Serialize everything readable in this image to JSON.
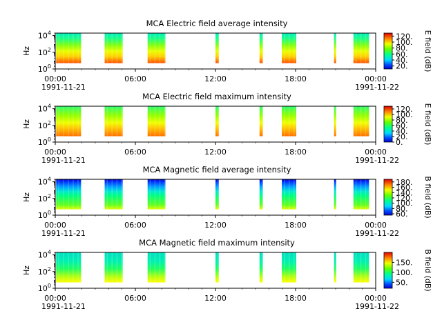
{
  "chart_data": [
    {
      "type": "heatmap",
      "title": "MCA  Electric field average intensity",
      "ylabel": "Hz",
      "yticks": [
        "10^0",
        "10^2",
        "10^4"
      ],
      "y_scale": "log",
      "ylim": [
        1,
        20000
      ],
      "xlim": [
        "1991-11-21 00:00",
        "1991-11-22 00:00"
      ],
      "xticks": [
        "00:00",
        "06:00",
        "12:00",
        "18:00",
        "00:00"
      ],
      "date_labels": [
        "1991-11-21",
        "1991-11-22"
      ],
      "colorbar": {
        "label": "E field (dB)",
        "ticks": [
          "120.",
          "100.",
          "80.",
          "60.",
          "40.",
          "20."
        ],
        "range": [
          10,
          130
        ]
      },
      "passes": [
        {
          "start": "1991-11-21 00:04",
          "end": "1991-11-21 01:56",
          "level": 70
        },
        {
          "start": "1991-11-21 03:42",
          "end": "1991-11-21 05:03",
          "level": 78
        },
        {
          "start": "1991-11-21 06:55",
          "end": "1991-11-21 08:15",
          "level": 85
        },
        {
          "start": "1991-11-21 12:00",
          "end": "1991-11-21 12:15",
          "level": 75
        },
        {
          "start": "1991-11-21 15:18",
          "end": "1991-11-21 15:33",
          "level": 80
        },
        {
          "start": "1991-11-21 16:58",
          "end": "1991-11-21 18:03",
          "level": 65
        },
        {
          "start": "1991-11-21 20:53",
          "end": "1991-11-21 21:02",
          "level": 70
        },
        {
          "start": "1991-11-21 22:20",
          "end": "1991-11-21 23:30",
          "level": 68
        }
      ]
    },
    {
      "type": "heatmap",
      "title": "MCA  Electric field maximum intensity",
      "ylabel": "Hz",
      "yticks": [
        "10^0",
        "10^2",
        "10^4"
      ],
      "y_scale": "log",
      "ylim": [
        1,
        20000
      ],
      "xlim": [
        "1991-11-21 00:00",
        "1991-11-22 00:00"
      ],
      "xticks": [
        "00:00",
        "06:00",
        "12:00",
        "18:00",
        "00:00"
      ],
      "date_labels": [
        "1991-11-21",
        "1991-11-22"
      ],
      "colorbar": {
        "label": "E field (dB)",
        "ticks": [
          "120.",
          "100.",
          "80.",
          "60.",
          "40.",
          "20.",
          "0."
        ],
        "range": [
          0,
          130
        ]
      },
      "passes": [
        {
          "start": "1991-11-21 00:04",
          "end": "1991-11-21 01:56",
          "level": 85
        },
        {
          "start": "1991-11-21 03:42",
          "end": "1991-11-21 05:03",
          "level": 92
        },
        {
          "start": "1991-11-21 06:55",
          "end": "1991-11-21 08:15",
          "level": 98
        },
        {
          "start": "1991-11-21 12:00",
          "end": "1991-11-21 12:15",
          "level": 88
        },
        {
          "start": "1991-11-21 15:18",
          "end": "1991-11-21 15:33",
          "level": 92
        },
        {
          "start": "1991-11-21 16:58",
          "end": "1991-11-21 18:03",
          "level": 85
        },
        {
          "start": "1991-11-21 20:53",
          "end": "1991-11-21 21:02",
          "level": 85
        },
        {
          "start": "1991-11-21 22:20",
          "end": "1991-11-21 23:30",
          "level": 88
        }
      ]
    },
    {
      "type": "heatmap",
      "title": "MCA  Magnetic field average intensity",
      "ylabel": "Hz",
      "yticks": [
        "10^0",
        "10^2",
        "10^4"
      ],
      "y_scale": "log",
      "ylim": [
        1,
        20000
      ],
      "xlim": [
        "1991-11-21 00:00",
        "1991-11-22 00:00"
      ],
      "xticks": [
        "00:00",
        "06:00",
        "12:00",
        "18:00",
        "00:00"
      ],
      "date_labels": [
        "1991-11-21",
        "1991-11-22"
      ],
      "colorbar": {
        "label": "B field (dB)",
        "ticks": [
          "180.",
          "160.",
          "140.",
          "120.",
          "100.",
          "80.",
          "60."
        ],
        "range": [
          55,
          190
        ]
      },
      "passes": [
        {
          "start": "1991-11-21 00:04",
          "end": "1991-11-21 01:56",
          "level": 120
        },
        {
          "start": "1991-11-21 03:42",
          "end": "1991-11-21 05:03",
          "level": 120
        },
        {
          "start": "1991-11-21 06:55",
          "end": "1991-11-21 08:15",
          "level": 125
        },
        {
          "start": "1991-11-21 12:00",
          "end": "1991-11-21 12:15",
          "level": 125
        },
        {
          "start": "1991-11-21 15:18",
          "end": "1991-11-21 15:33",
          "level": 120
        },
        {
          "start": "1991-11-21 16:58",
          "end": "1991-11-21 18:03",
          "level": 120
        },
        {
          "start": "1991-11-21 20:53",
          "end": "1991-11-21 21:02",
          "level": 120
        },
        {
          "start": "1991-11-21 22:20",
          "end": "1991-11-21 23:30",
          "level": 120
        }
      ]
    },
    {
      "type": "heatmap",
      "title": "MCA  Magnetic field maximum intensity",
      "ylabel": "Hz",
      "yticks": [
        "10^0",
        "10^2",
        "10^4"
      ],
      "y_scale": "log",
      "ylim": [
        1,
        20000
      ],
      "xlim": [
        "1991-11-21 00:00",
        "1991-11-22 00:00"
      ],
      "xticks": [
        "00:00",
        "06:00",
        "12:00",
        "18:00",
        "00:00"
      ],
      "date_labels": [
        "1991-11-21",
        "1991-11-22"
      ],
      "colorbar": {
        "label": "B field (dB)",
        "ticks": [
          "150.",
          "100.",
          "50."
        ],
        "range": [
          20,
          200
        ]
      },
      "passes": [
        {
          "start": "1991-11-21 00:04",
          "end": "1991-11-21 01:56",
          "level": 120
        },
        {
          "start": "1991-11-21 03:42",
          "end": "1991-11-21 05:03",
          "level": 120
        },
        {
          "start": "1991-11-21 06:55",
          "end": "1991-11-21 08:15",
          "level": 125
        },
        {
          "start": "1991-11-21 12:00",
          "end": "1991-11-21 12:15",
          "level": 130
        },
        {
          "start": "1991-11-21 15:18",
          "end": "1991-11-21 15:33",
          "level": 125
        },
        {
          "start": "1991-11-21 16:58",
          "end": "1991-11-21 18:03",
          "level": 120
        },
        {
          "start": "1991-11-21 20:53",
          "end": "1991-11-21 21:02",
          "level": 120
        },
        {
          "start": "1991-11-21 22:20",
          "end": "1991-11-21 23:30",
          "level": 120
        }
      ]
    }
  ]
}
